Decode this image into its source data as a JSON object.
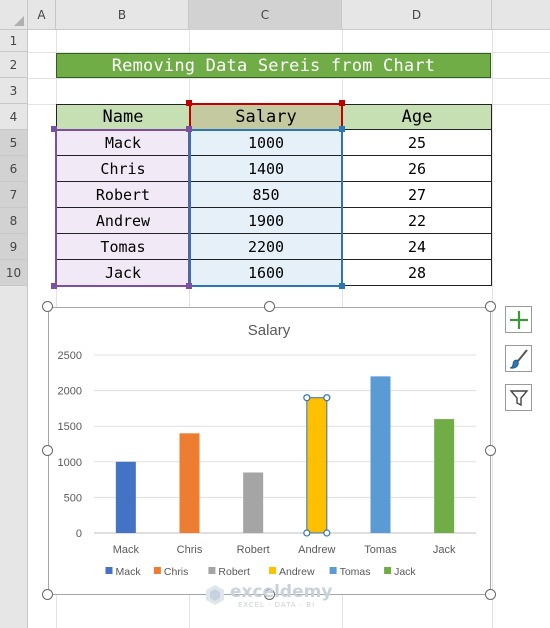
{
  "columns": [
    "A",
    "B",
    "C",
    "D"
  ],
  "rows": [
    "1",
    "2",
    "3",
    "4",
    "5",
    "6",
    "7",
    "8",
    "9",
    "10"
  ],
  "title": "Removing Data Sereis from Chart",
  "table": {
    "headers": [
      "Name",
      "Salary",
      "Age"
    ],
    "rows": [
      {
        "name": "Mack",
        "salary": "1000",
        "age": "25"
      },
      {
        "name": "Chris",
        "salary": "1400",
        "age": "26"
      },
      {
        "name": "Robert",
        "salary": "850",
        "age": "27"
      },
      {
        "name": "Andrew",
        "salary": "1900",
        "age": "22"
      },
      {
        "name": "Tomas",
        "salary": "2200",
        "age": "24"
      },
      {
        "name": "Jack",
        "salary": "1600",
        "age": "28"
      }
    ]
  },
  "chart_data": {
    "type": "bar",
    "title": "Salary",
    "categories": [
      "Mack",
      "Chris",
      "Robert",
      "Andrew",
      "Tomas",
      "Jack"
    ],
    "values": [
      1000,
      1400,
      850,
      1900,
      2200,
      1600
    ],
    "colors": [
      "#4472c4",
      "#ed7d31",
      "#a5a5a5",
      "#ffc000",
      "#5b9bd5",
      "#70ad47"
    ],
    "yticks": [
      0,
      500,
      1000,
      1500,
      2000,
      2500
    ],
    "ylim": [
      0,
      2500
    ],
    "selected_index": 3,
    "legend_position": "bottom",
    "grid": true
  },
  "side_buttons": [
    "chart-elements-icon",
    "chart-styles-icon",
    "chart-filters-icon"
  ],
  "watermark": {
    "name": "exceldemy",
    "tagline": "EXCEL · DATA · BI"
  }
}
